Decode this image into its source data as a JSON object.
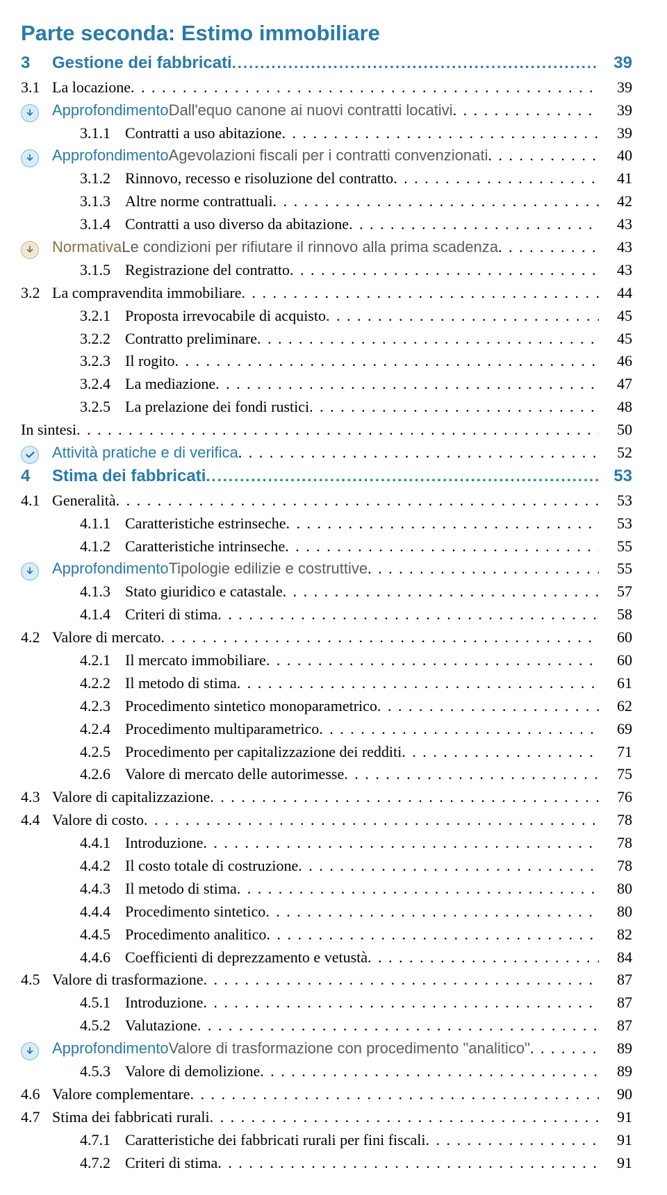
{
  "colors": {
    "part_title": "#2a7aa8",
    "chapter": "#2a7aa8",
    "approfondimento_tag": "#2a7aa8",
    "approfondimento_text": "#5c5c5c",
    "normativa_tag": "#8a704a",
    "attivita_text": "#2a7aa8",
    "icon_arrow_bg": "#d9ecf6",
    "icon_arrow_ring": "#7fb9d6",
    "icon_arrow_fill": "#2a7aa8",
    "icon_check_bg": "#d9ecf6",
    "icon_check_ring": "#7fb9d6",
    "icon_check_fill": "#2a7aa8",
    "icon_norm_bg": "#efe7d6",
    "icon_norm_ring": "#c9b98f",
    "icon_norm_fill": "#8a704a",
    "body_text": "#000000",
    "dots": "#000000"
  },
  "part_title": "Parte seconda: Estimo immobiliare",
  "dots_fill": ". . . . . . . . . . . . . . . . . . . . . . . . . . . . . . . . . . . . . . . . . . . . . . . . . . . . . . . . . . . . . . . . . . . . . . . . . . . . . . . . . . . . . . . . . . . . . . . . . . . . . . . . . . . . . . . . . . . . . . . . . . . . . . . . . . . . . . . . . . . . . . . . . . . . . . . . . . . . . . . . . . . . . . . .",
  "dots_fill_bold": "..................................................................................................................................................",
  "entries": [
    {
      "type": "chapter",
      "num": "3",
      "label": "Gestione dei fabbricati",
      "page": "39"
    },
    {
      "type": "section",
      "num": "3.1",
      "label": "La locazione",
      "page": "39"
    },
    {
      "type": "appro",
      "tag": "Approfondimento",
      "rest": " Dall'equo canone ai nuovi contratti locativi",
      "page": "39"
    },
    {
      "type": "sub",
      "num": "3.1.1",
      "label": "Contratti a uso abitazione",
      "page": "39"
    },
    {
      "type": "appro",
      "tag": "Approfondimento",
      "rest": " Agevolazioni fiscali per i contratti convenzionati",
      "page": "40"
    },
    {
      "type": "sub",
      "num": "3.1.2",
      "label": "Rinnovo, recesso e risoluzione del contratto",
      "page": "41"
    },
    {
      "type": "sub",
      "num": "3.1.3",
      "label": "Altre norme contrattuali",
      "page": "42"
    },
    {
      "type": "sub",
      "num": "3.1.4",
      "label": "Contratti a uso diverso da abitazione",
      "page": "43"
    },
    {
      "type": "normativa",
      "tag": "Normativa",
      "rest": " Le condizioni per rifiutare il rinnovo alla prima scadenza",
      "page": "43"
    },
    {
      "type": "sub",
      "num": "3.1.5",
      "label": "Registrazione del contratto",
      "page": "43"
    },
    {
      "type": "section",
      "num": "3.2",
      "label": "La compravendita immobiliare",
      "page": "44"
    },
    {
      "type": "sub",
      "num": "3.2.1",
      "label": "Proposta irrevocabile di acquisto",
      "page": "45"
    },
    {
      "type": "sub",
      "num": "3.2.2",
      "label": "Contratto preliminare",
      "page": "45"
    },
    {
      "type": "sub",
      "num": "3.2.3",
      "label": "Il rogito",
      "page": "46"
    },
    {
      "type": "sub",
      "num": "3.2.4",
      "label": "La mediazione",
      "page": "47"
    },
    {
      "type": "sub",
      "num": "3.2.5",
      "label": "La prelazione dei fondi rustici",
      "page": "48"
    },
    {
      "type": "plain",
      "label": "In sintesi",
      "page": "50"
    },
    {
      "type": "attivita",
      "tag": "Attività pratiche e di verifica",
      "rest": "",
      "page": "52"
    },
    {
      "type": "chapter",
      "num": "4",
      "label": "Stima dei fabbricati",
      "page": "53"
    },
    {
      "type": "section",
      "num": "4.1",
      "label": "Generalità",
      "page": "53"
    },
    {
      "type": "sub",
      "num": "4.1.1",
      "label": "Caratteristiche estrinseche",
      "page": "53"
    },
    {
      "type": "sub",
      "num": "4.1.2",
      "label": "Caratteristiche intrinseche",
      "page": "55"
    },
    {
      "type": "appro",
      "tag": "Approfondimento",
      "rest": " Tipologie edilizie e costruttive",
      "page": "55"
    },
    {
      "type": "sub",
      "num": "4.1.3",
      "label": "Stato giuridico e catastale",
      "page": "57"
    },
    {
      "type": "sub",
      "num": "4.1.4",
      "label": "Criteri di stima",
      "page": "58"
    },
    {
      "type": "section",
      "num": "4.2",
      "label": "Valore di mercato",
      "page": "60"
    },
    {
      "type": "sub",
      "num": "4.2.1",
      "label": "Il mercato immobiliare",
      "page": "60"
    },
    {
      "type": "sub",
      "num": "4.2.2",
      "label": "Il metodo di stima",
      "page": "61"
    },
    {
      "type": "sub",
      "num": "4.2.3",
      "label": "Procedimento sintetico monoparametrico",
      "page": "62"
    },
    {
      "type": "sub",
      "num": "4.2.4",
      "label": "Procedimento multiparametrico",
      "page": "69"
    },
    {
      "type": "sub",
      "num": "4.2.5",
      "label": "Procedimento per capitalizzazione dei redditi",
      "page": "71"
    },
    {
      "type": "sub",
      "num": "4.2.6",
      "label": "Valore di mercato delle autorimesse",
      "page": "75"
    },
    {
      "type": "section",
      "num": "4.3",
      "label": "Valore di capitalizzazione",
      "page": "76"
    },
    {
      "type": "section",
      "num": "4.4",
      "label": "Valore di costo",
      "page": "78"
    },
    {
      "type": "sub",
      "num": "4.4.1",
      "label": "Introduzione",
      "page": "78"
    },
    {
      "type": "sub",
      "num": "4.4.2",
      "label": "Il costo totale di costruzione",
      "page": "78"
    },
    {
      "type": "sub",
      "num": "4.4.3",
      "label": "Il metodo di stima",
      "page": "80"
    },
    {
      "type": "sub",
      "num": "4.4.4",
      "label": "Procedimento sintetico",
      "page": "80"
    },
    {
      "type": "sub",
      "num": "4.4.5",
      "label": "Procedimento analitico",
      "page": "82"
    },
    {
      "type": "sub",
      "num": "4.4.6",
      "label": "Coefficienti di deprezzamento e vetustà",
      "page": "84"
    },
    {
      "type": "section",
      "num": "4.5",
      "label": "Valore di trasformazione",
      "page": "87"
    },
    {
      "type": "sub",
      "num": "4.5.1",
      "label": "Introduzione",
      "page": "87"
    },
    {
      "type": "sub",
      "num": "4.5.2",
      "label": "Valutazione",
      "page": "87"
    },
    {
      "type": "appro",
      "tag": "Approfondimento",
      "rest": " Valore di trasformazione con procedimento \"analitico\"",
      "page": "89"
    },
    {
      "type": "sub",
      "num": "4.5.3",
      "label": "Valore di demolizione",
      "page": "89"
    },
    {
      "type": "section",
      "num": "4.6",
      "label": "Valore complementare",
      "page": "90"
    },
    {
      "type": "section",
      "num": "4.7",
      "label": "Stima dei fabbricati rurali",
      "page": "91"
    },
    {
      "type": "sub",
      "num": "4.7.1",
      "label": "Caratteristiche dei fabbricati rurali per fini fiscali",
      "page": "91"
    },
    {
      "type": "sub",
      "num": "4.7.2",
      "label": "Criteri di stima",
      "page": "91"
    }
  ]
}
